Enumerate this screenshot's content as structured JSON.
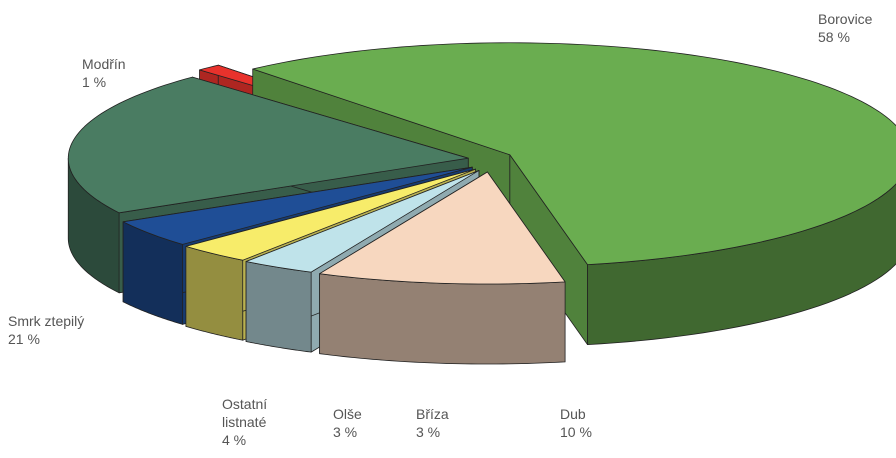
{
  "chart_data": {
    "type": "pie3d",
    "categories": [
      "Borovice",
      "Dub",
      "Bříza",
      "Olše",
      "Ostatní listnaté",
      "Smrk ztepilý",
      "Modřín"
    ],
    "values": [
      58,
      10,
      3,
      3,
      4,
      21,
      1
    ],
    "value_labels": [
      "58 %",
      "10 %",
      "3 %",
      "3 %",
      "4 %",
      "21 %",
      "1 %"
    ],
    "colors": [
      "#6aad50",
      "#f7d7bf",
      "#bfe3ea",
      "#f7ec6a",
      "#1f4e96",
      "#4a7c62",
      "#e8322c"
    ]
  }
}
